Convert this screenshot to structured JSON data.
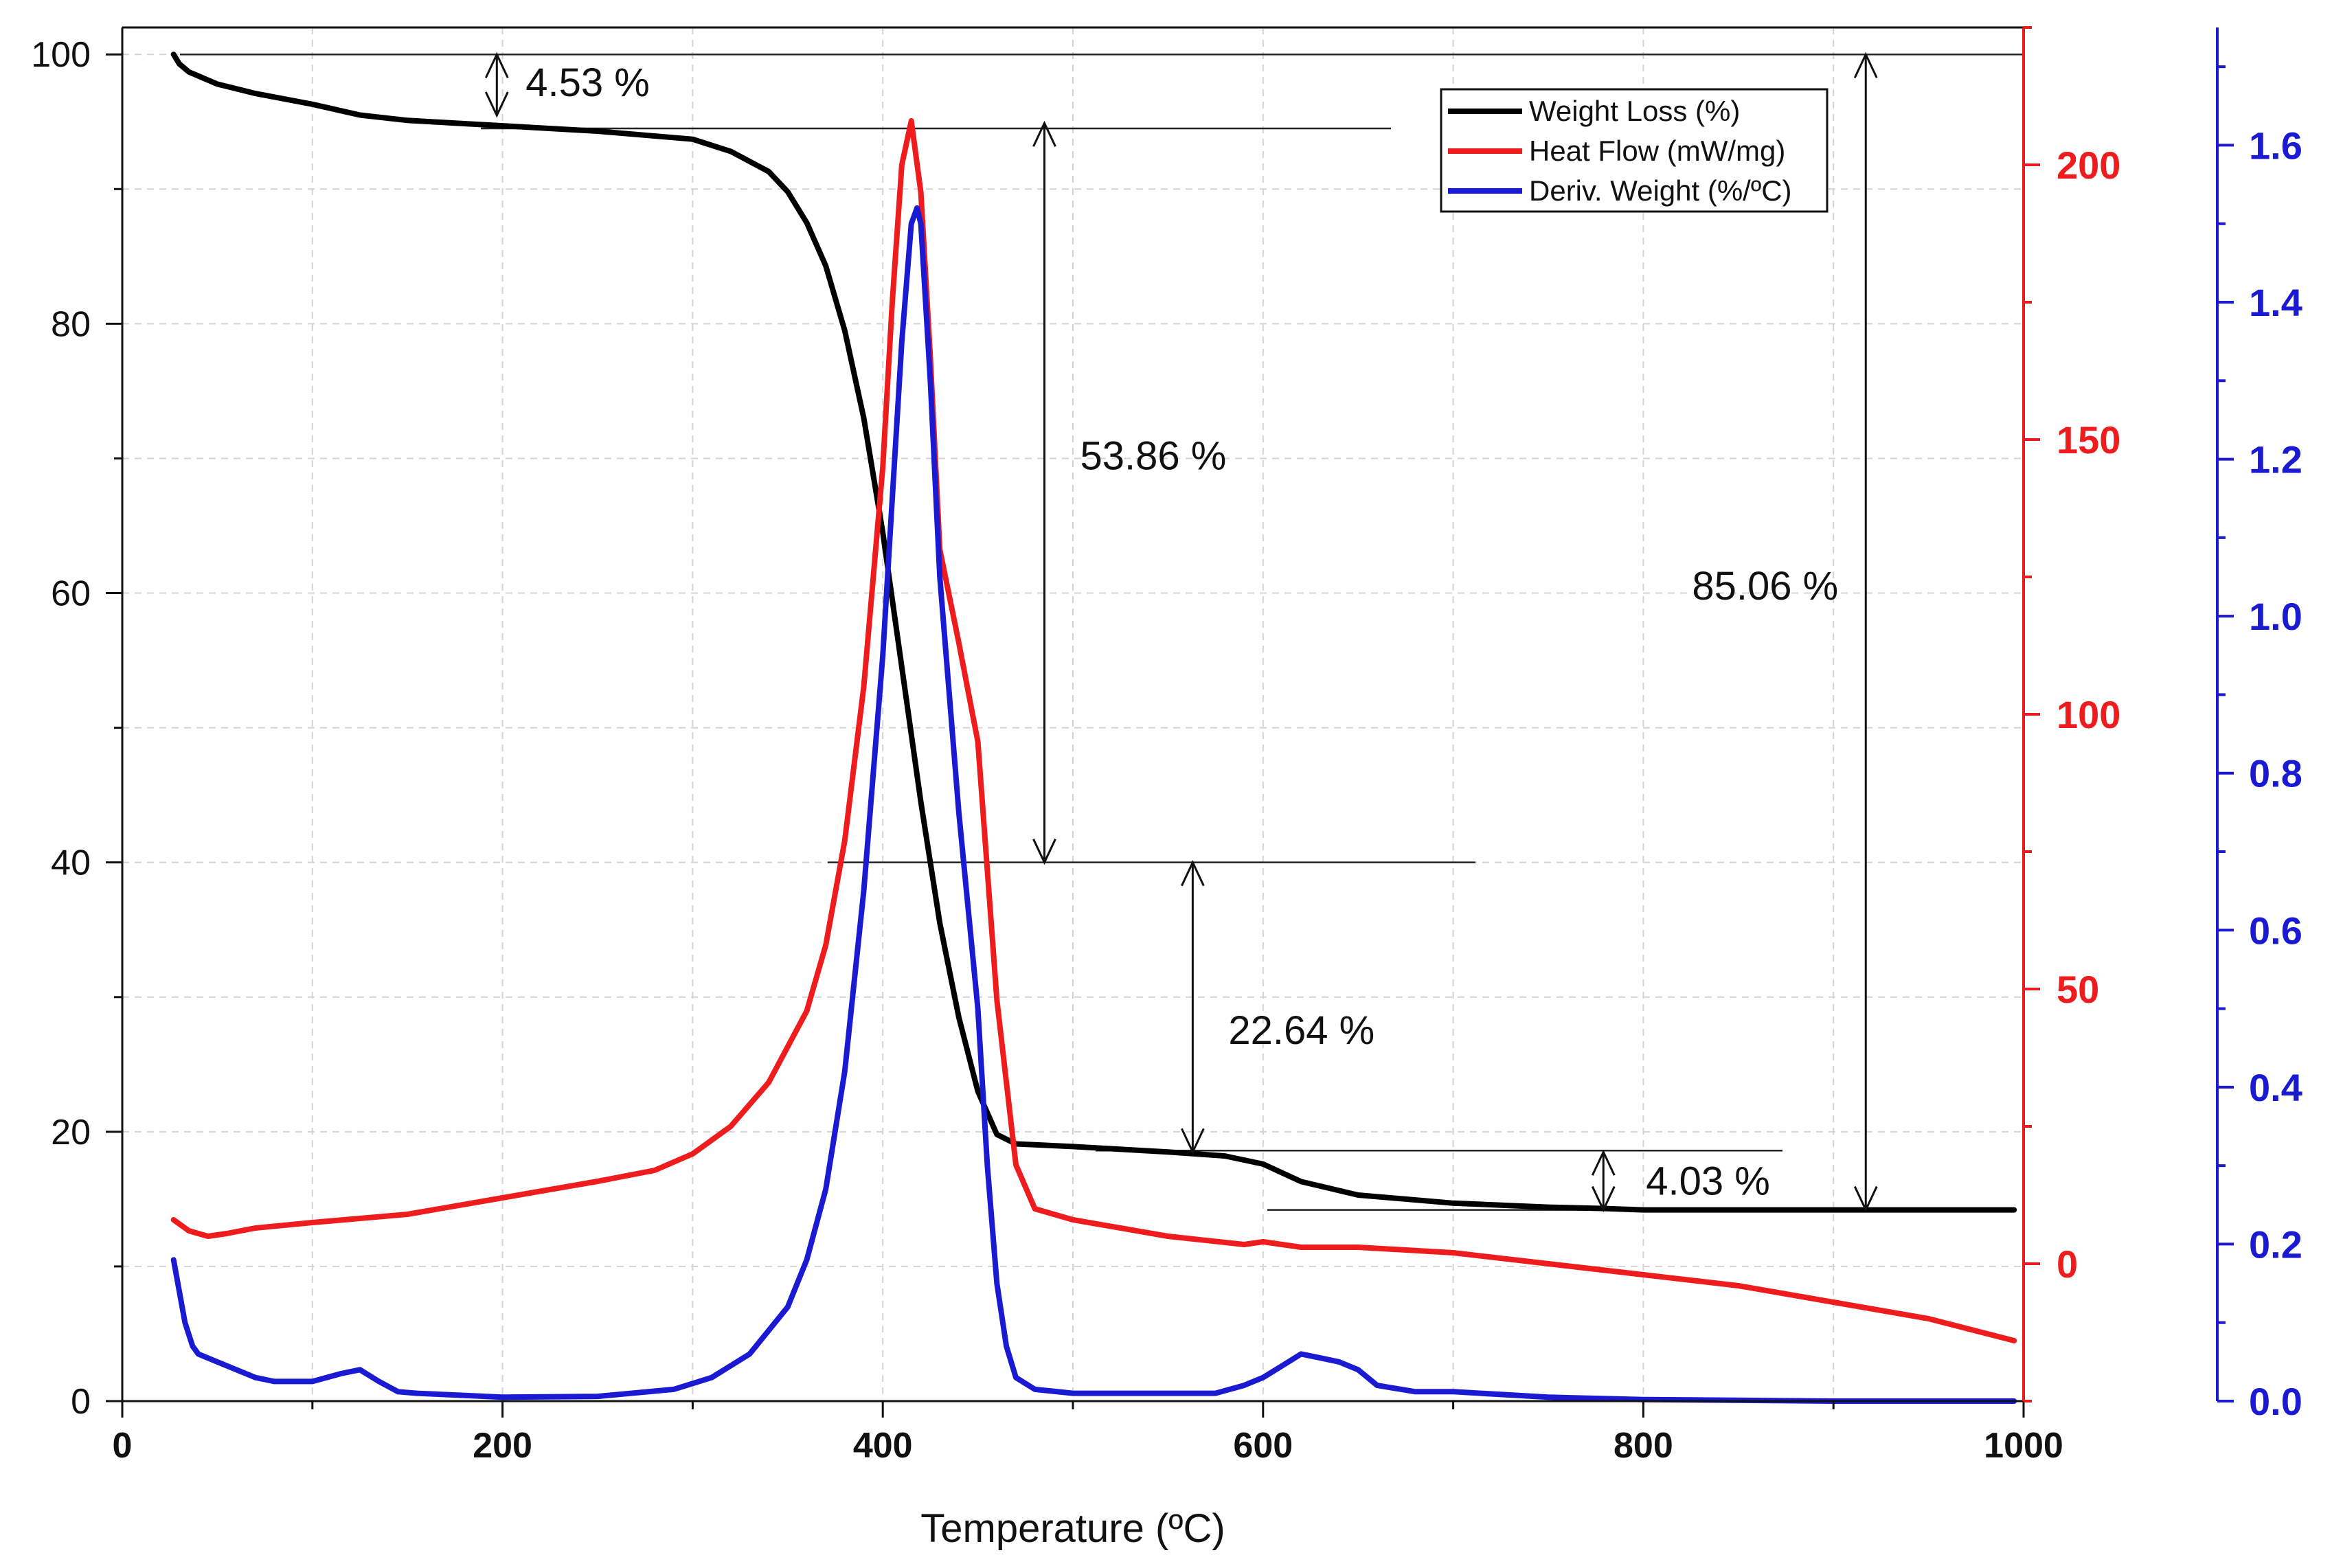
{
  "chart_data": {
    "type": "line",
    "xlabel": "Temperature (ºC)",
    "xlim": [
      0,
      1000
    ],
    "x_ticks": [
      "0",
      "200",
      "400",
      "600",
      "800",
      "1000"
    ],
    "axes": {
      "left": {
        "ylim": [
          0,
          102
        ],
        "ticks": [
          "0",
          "20",
          "40",
          "60",
          "80",
          "100"
        ],
        "color": "#111111"
      },
      "right_red": {
        "ylim": [
          -25,
          225
        ],
        "ticks": [
          "0",
          "50",
          "100",
          "150",
          "200"
        ],
        "color": "#ee1c1c"
      },
      "right_blue": {
        "ylim": [
          0,
          1.75
        ],
        "ticks": [
          "0.0",
          "0.2",
          "0.4",
          "0.6",
          "0.8",
          "1.0",
          "1.2",
          "1.4",
          "1.6"
        ],
        "color": "#1a1ad2"
      }
    },
    "grid": true,
    "legend_position": "top-right",
    "series": [
      {
        "name": "Weight Loss (%)",
        "color": "#000000",
        "axis": "left",
        "x": [
          27,
          30,
          35,
          50,
          70,
          100,
          125,
          150,
          175,
          200,
          250,
          300,
          320,
          340,
          350,
          360,
          370,
          380,
          390,
          400,
          410,
          420,
          430,
          440,
          450,
          460,
          470,
          500,
          550,
          580,
          600,
          620,
          650,
          700,
          750,
          780,
          800,
          850,
          900,
          950,
          995
        ],
        "y": [
          100,
          99.3,
          98.7,
          97.8,
          97.1,
          96.3,
          95.5,
          95.1,
          94.9,
          94.7,
          94.3,
          93.7,
          92.8,
          91.3,
          89.8,
          87.5,
          84.3,
          79.5,
          73.0,
          64.5,
          54.5,
          44.5,
          35.5,
          28.5,
          23.0,
          19.8,
          19.1,
          18.9,
          18.5,
          18.2,
          17.6,
          16.3,
          15.3,
          14.7,
          14.4,
          14.3,
          14.2,
          14.2,
          14.2,
          14.2,
          14.2
        ]
      },
      {
        "name": "Heat Flow (mW/mg)",
        "color": "#ee1c1c",
        "axis": "right_red",
        "x": [
          27,
          35,
          45,
          55,
          70,
          100,
          150,
          200,
          250,
          280,
          300,
          320,
          340,
          360,
          370,
          380,
          390,
          400,
          405,
          410,
          415,
          420,
          425,
          430,
          440,
          450,
          460,
          470,
          480,
          500,
          550,
          590,
          600,
          610,
          620,
          650,
          700,
          750,
          800,
          850,
          900,
          950,
          995
        ],
        "y": [
          8,
          6,
          5,
          5.5,
          6.5,
          7.5,
          9,
          12,
          15,
          17,
          20,
          25,
          33,
          46,
          58,
          77,
          105,
          145,
          175,
          200,
          208,
          195,
          165,
          130,
          113,
          95,
          48,
          18,
          10,
          8,
          5,
          3.5,
          4,
          3.5,
          3,
          3,
          2,
          0,
          -2,
          -4,
          -7,
          -10,
          -14
        ]
      },
      {
        "name": "Deriv. Weight (%/ºC)",
        "color": "#1a1ad2",
        "axis": "right_blue",
        "x": [
          27,
          30,
          33,
          37,
          40,
          50,
          60,
          70,
          80,
          100,
          115,
          125,
          135,
          145,
          155,
          200,
          250,
          290,
          310,
          330,
          350,
          360,
          370,
          380,
          390,
          400,
          405,
          410,
          415,
          418,
          420,
          425,
          430,
          440,
          450,
          455,
          460,
          465,
          470,
          480,
          500,
          550,
          575,
          590,
          600,
          610,
          620,
          630,
          640,
          650,
          660,
          680,
          700,
          750,
          800,
          900,
          995
        ],
        "y": [
          0.18,
          0.14,
          0.1,
          0.07,
          0.06,
          0.05,
          0.04,
          0.03,
          0.025,
          0.025,
          0.035,
          0.04,
          0.025,
          0.012,
          0.01,
          0.005,
          0.006,
          0.015,
          0.03,
          0.06,
          0.12,
          0.18,
          0.27,
          0.42,
          0.65,
          0.95,
          1.15,
          1.35,
          1.5,
          1.52,
          1.5,
          1.3,
          1.05,
          0.75,
          0.5,
          0.3,
          0.15,
          0.07,
          0.03,
          0.015,
          0.01,
          0.01,
          0.01,
          0.02,
          0.03,
          0.045,
          0.06,
          0.055,
          0.05,
          0.04,
          0.02,
          0.012,
          0.012,
          0.005,
          0.002,
          0.0,
          0.0
        ]
      }
    ],
    "annotations": [
      {
        "text": "4.53 %",
        "x_data": 197,
        "y_from": 100,
        "y_to": 95.47
      },
      {
        "text": "53.86 %",
        "x_data": 485,
        "y_from": 94.9,
        "y_to": 40
      },
      {
        "text": "22.64 %",
        "x_data": 563,
        "y_from": 40,
        "y_to": 18.5
      },
      {
        "text": "4.03 %",
        "x_data": 779,
        "y_from": 18.5,
        "y_to": 14.2
      },
      {
        "text": "85.06 %",
        "x_data": 917,
        "y_from": 100,
        "y_to": 14.2
      }
    ]
  }
}
